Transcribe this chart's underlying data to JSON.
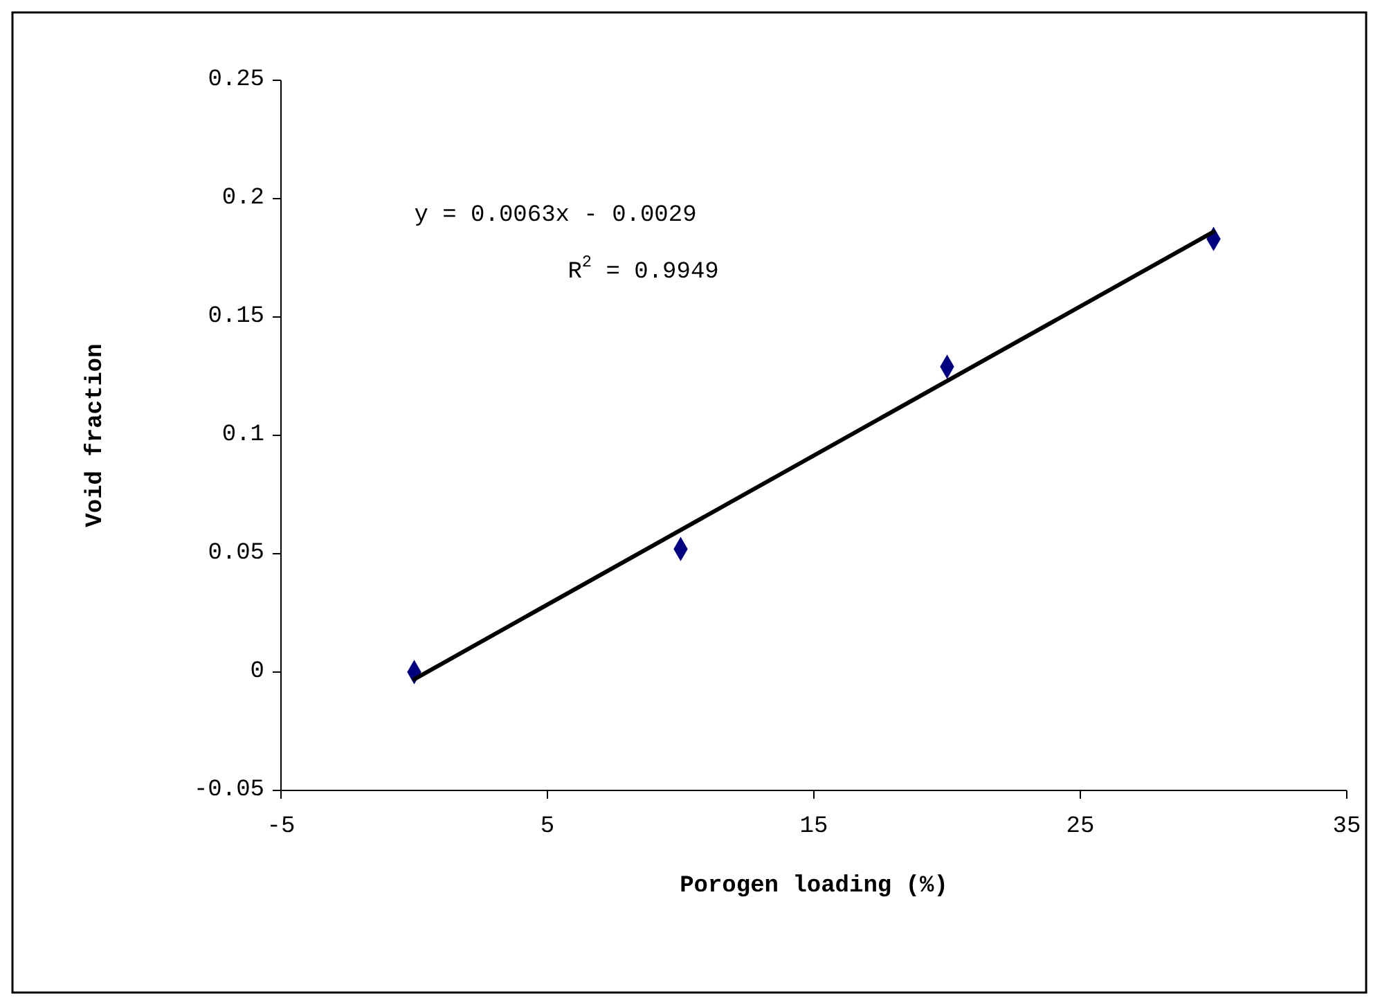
{
  "chart_data": {
    "type": "scatter",
    "xlabel": "Porogen loading (%)",
    "ylabel": "Void fraction",
    "xlim": [
      -5,
      35
    ],
    "xticks": [
      -5,
      5,
      15,
      25,
      35
    ],
    "ylim": [
      -0.05,
      0.25
    ],
    "yticks": [
      -0.05,
      0,
      0.05,
      0.1,
      0.15,
      0.2,
      0.25
    ],
    "grid": false,
    "marker": "diamond",
    "series": [
      {
        "type": "scatter",
        "color": "#000080",
        "x": [
          0,
          10,
          20,
          30
        ],
        "values": [
          0,
          0.052,
          0.129,
          0.183
        ]
      },
      {
        "type": "line",
        "color": "#000000",
        "x": [
          0,
          30
        ],
        "values": [
          -0.003,
          0.186
        ],
        "line_style": "solid",
        "marker": "none"
      }
    ],
    "annotations": [
      "y = 0.0063x - 0.0029",
      "R$^{2}$ = 0.9949"
    ]
  }
}
